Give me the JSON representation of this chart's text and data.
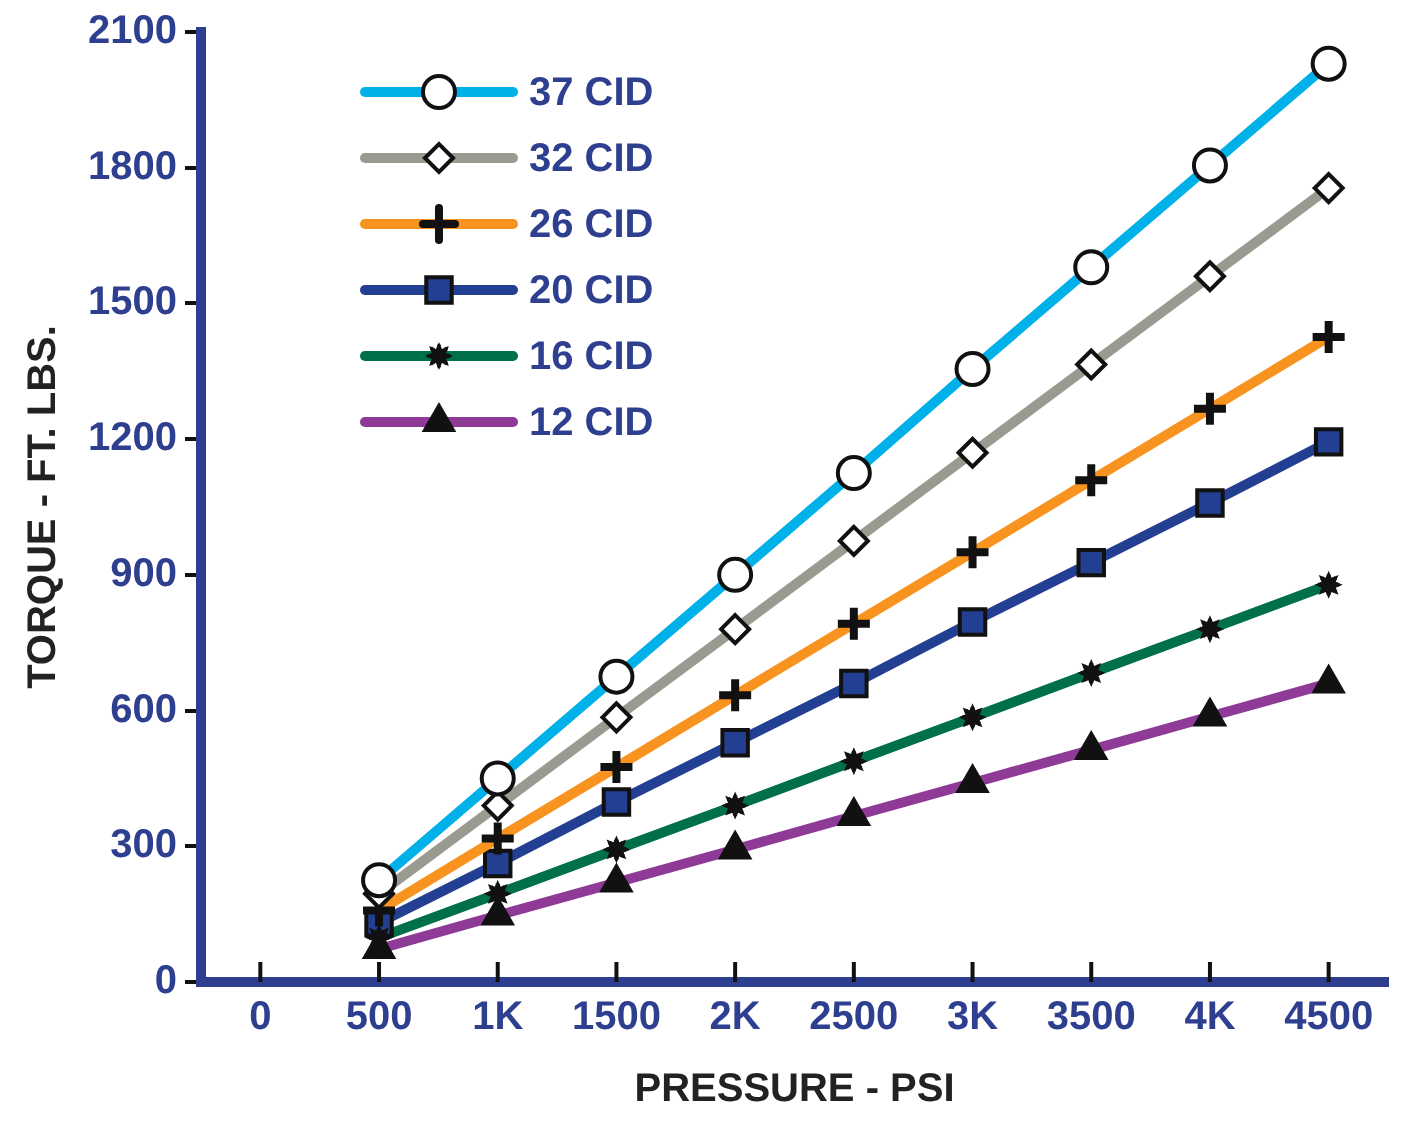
{
  "chart_data": {
    "type": "line",
    "xlabel": "PRESSURE - PSI",
    "ylabel": "TORQUE - FT. LBS.",
    "x": [
      500,
      1000,
      1500,
      2000,
      2500,
      3000,
      3500,
      4000,
      4500
    ],
    "xlim": [
      -250,
      4750
    ],
    "xticks": [
      0,
      500,
      {
        "value": 1000,
        "label": "1K"
      },
      1500,
      {
        "value": 2000,
        "label": "2K"
      },
      2500,
      {
        "value": 3000,
        "label": "3K"
      },
      3500,
      {
        "value": 4000,
        "label": "4K"
      },
      4500
    ],
    "ylim": [
      0,
      2100
    ],
    "yticks": [
      0,
      300,
      600,
      900,
      1200,
      1500,
      1800,
      2100
    ],
    "grid": false,
    "legend": "top left",
    "line_style": "solid",
    "series": [
      {
        "name": "37 CID",
        "color": "#00b0e8",
        "marker": "circle",
        "values": [
          225,
          450,
          675,
          900,
          1125,
          1355,
          1580,
          1805,
          2030
        ]
      },
      {
        "name": "32 CID",
        "color": "#999b90",
        "marker": "diamond",
        "values": [
          195,
          390,
          585,
          780,
          975,
          1170,
          1365,
          1560,
          1755
        ]
      },
      {
        "name": "26 CID",
        "color": "#f7931e",
        "marker": "cross",
        "values": [
          158,
          317,
          475,
          634,
          792,
          950,
          1109,
          1267,
          1426
        ]
      },
      {
        "name": "20 CID",
        "color": "#233f92",
        "marker": "square",
        "values": [
          131,
          262,
          398,
          529,
          660,
          796,
          927,
          1059,
          1194
        ]
      },
      {
        "name": "16 CID",
        "color": "#00704a",
        "marker": "star",
        "values": [
          98,
          195,
          293,
          390,
          488,
          585,
          683,
          780,
          878
        ]
      },
      {
        "name": "12 CID",
        "color": "#8e3a96",
        "marker": "triangle",
        "values": [
          73,
          147,
          220,
          293,
          367,
          440,
          513,
          587,
          660
        ]
      }
    ]
  }
}
